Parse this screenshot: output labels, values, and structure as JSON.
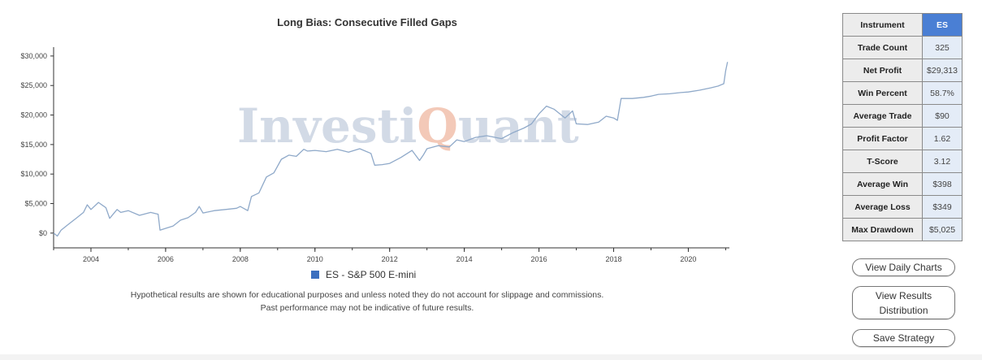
{
  "chart_data": {
    "type": "line",
    "title": "Long Bias: Consecutive Filled Gaps",
    "xlabel": "",
    "ylabel": "",
    "xlim": [
      2003.0,
      2021.1
    ],
    "ylim": [
      -2500,
      31500
    ],
    "x_ticks": [
      2004,
      2006,
      2008,
      2010,
      2012,
      2014,
      2016,
      2018,
      2020
    ],
    "y_ticks": [
      0,
      5000,
      10000,
      15000,
      20000,
      25000,
      30000
    ],
    "y_tick_labels": [
      "$0",
      "$5,000",
      "$10,000",
      "$15,000",
      "$20,000",
      "$25,000",
      "$30,000"
    ],
    "legend": "bottom",
    "grid": false,
    "series": [
      {
        "name": "ES - S&P 500 E-mini",
        "color": "#8fa9c9",
        "x": [
          2003.0,
          2003.1,
          2003.2,
          2003.4,
          2003.6,
          2003.8,
          2003.9,
          2004.0,
          2004.2,
          2004.4,
          2004.5,
          2004.7,
          2004.8,
          2005.0,
          2005.3,
          2005.6,
          2005.8,
          2005.85,
          2006.0,
          2006.2,
          2006.4,
          2006.6,
          2006.8,
          2006.9,
          2007.0,
          2007.3,
          2007.6,
          2007.9,
          2008.0,
          2008.2,
          2008.3,
          2008.5,
          2008.7,
          2008.9,
          2009.1,
          2009.3,
          2009.5,
          2009.7,
          2009.8,
          2010.0,
          2010.3,
          2010.6,
          2010.9,
          2011.2,
          2011.5,
          2011.6,
          2011.8,
          2012.0,
          2012.3,
          2012.6,
          2012.8,
          2012.9,
          2013.0,
          2013.3,
          2013.6,
          2013.8,
          2014.0,
          2014.3,
          2014.6,
          2015.0,
          2015.3,
          2015.6,
          2015.8,
          2016.0,
          2016.2,
          2016.4,
          2016.7,
          2016.9,
          2017.0,
          2017.3,
          2017.6,
          2017.8,
          2018.0,
          2018.1,
          2018.2,
          2018.5,
          2018.8,
          2019.0,
          2019.2,
          2019.5,
          2019.8,
          2020.0,
          2020.3,
          2020.6,
          2020.8,
          2020.95,
          2021.0,
          2021.05
        ],
        "y": [
          0,
          -500,
          500,
          1500,
          2500,
          3500,
          4800,
          4000,
          5200,
          4300,
          2500,
          4000,
          3500,
          3800,
          3000,
          3500,
          3200,
          500,
          800,
          1200,
          2200,
          2600,
          3500,
          4500,
          3400,
          3800,
          4000,
          4200,
          4500,
          3800,
          6200,
          6800,
          9500,
          10200,
          12500,
          13200,
          13000,
          14200,
          13900,
          14000,
          13800,
          14200,
          13700,
          14300,
          13500,
          11500,
          11600,
          11800,
          12800,
          14000,
          12300,
          13200,
          14300,
          14800,
          14600,
          15800,
          15500,
          16200,
          16500,
          16000,
          17000,
          17800,
          18500,
          20200,
          21500,
          21000,
          19500,
          20700,
          18500,
          18400,
          18800,
          19800,
          19500,
          19100,
          22800,
          22800,
          23000,
          23200,
          23500,
          23600,
          23800,
          23900,
          24200,
          24600,
          24900,
          25300,
          27500,
          29000
        ]
      }
    ]
  },
  "watermark": {
    "part1": "Investi",
    "part2": "Q",
    "part3": "uant",
    "color_main": "#d2dae6",
    "color_accent": "#f3c9b8"
  },
  "legend": {
    "label": "ES - S&P 500 E-mini",
    "color": "#3b6fbf"
  },
  "disclaimer": {
    "line1": "Hypothetical results are shown for educational purposes and unless noted they do not account for slippage and commissions.",
    "line2": "Past performance may not be indicative of future results."
  },
  "stats": {
    "header_label": "Instrument",
    "header_value": "ES",
    "rows": [
      {
        "label": "Trade Count",
        "value": "325"
      },
      {
        "label": "Net Profit",
        "value": "$29,313"
      },
      {
        "label": "Win Percent",
        "value": "58.7%"
      },
      {
        "label": "Average Trade",
        "value": "$90"
      },
      {
        "label": "Profit Factor",
        "value": "1.62"
      },
      {
        "label": "T-Score",
        "value": "3.12"
      },
      {
        "label": "Average Win",
        "value": "$398"
      },
      {
        "label": "Average Loss",
        "value": "$349"
      },
      {
        "label": "Max Drawdown",
        "value": "$5,025"
      }
    ]
  },
  "buttons": {
    "daily": "View Daily Charts",
    "dist_line1": "View Results",
    "dist_line2": "Distribution",
    "save": "Save Strategy"
  }
}
